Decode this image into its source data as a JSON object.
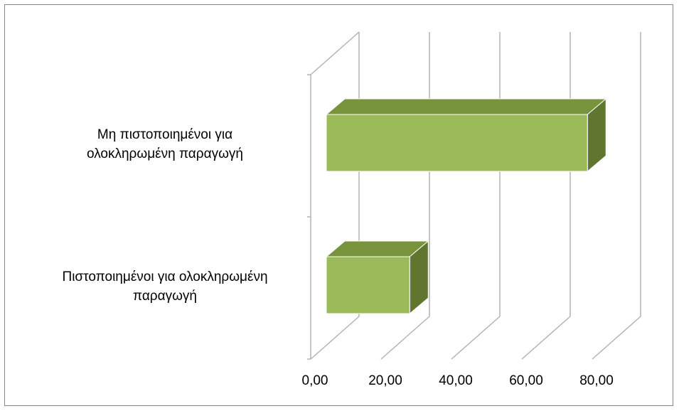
{
  "chart_data": {
    "type": "bar",
    "orientation": "horizontal",
    "style": "3d",
    "categories": [
      [
        "Μη πιστοποιημένοι για",
        "ολοκληρωμένη παραγωγή"
      ],
      [
        "Πιστοποιημένοι για ολοκληρωμένη",
        "παραγωγή"
      ]
    ],
    "values": [
      75.0,
      24.5
    ],
    "x_ticks": [
      "0,00",
      "20,00",
      "40,00",
      "60,00",
      "80,00"
    ],
    "xlim": [
      0,
      80
    ],
    "grid": true,
    "legend": "none",
    "colors": {
      "bar_front": "#9bbb59",
      "bar_top": "#77933c",
      "bar_side": "#5f7530",
      "bar_edge": "#ffffff",
      "gridline": "#b3b3b3",
      "frame_border": "#868686"
    }
  }
}
